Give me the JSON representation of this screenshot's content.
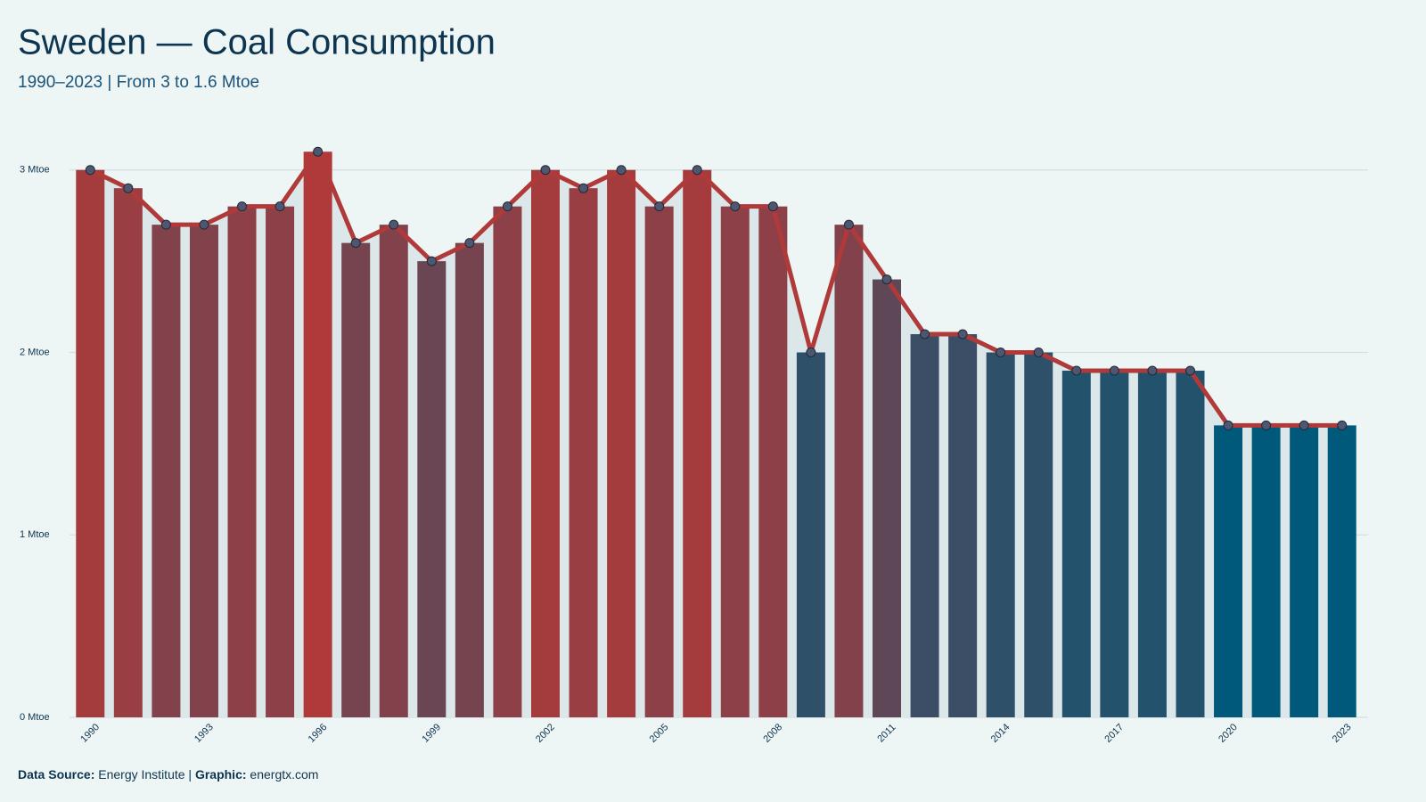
{
  "chart_data": {
    "type": "bar",
    "title": "Sweden — Coal Consumption",
    "subtitle": "1990–2023 | From 3 to 1.6 Mtoe",
    "categories": [
      "1990",
      null,
      null,
      "1993",
      null,
      null,
      "1996",
      null,
      null,
      "1999",
      null,
      null,
      "2002",
      null,
      null,
      "2005",
      null,
      null,
      "2008",
      null,
      null,
      "2011",
      null,
      null,
      "2014",
      null,
      null,
      "2017",
      null,
      null,
      "2020",
      null,
      null,
      "2023"
    ],
    "values": [
      3.0,
      2.9,
      2.7,
      2.7,
      2.8,
      2.8,
      3.1,
      2.6,
      2.7,
      2.5,
      2.6,
      2.8,
      3.0,
      2.9,
      3.0,
      2.8,
      3.0,
      2.8,
      2.8,
      2.0,
      2.7,
      2.4,
      2.1,
      2.1,
      2.0,
      2.0,
      1.9,
      1.9,
      1.9,
      1.9,
      1.6,
      1.6,
      1.6,
      1.6
    ],
    "color_scale": [
      "#00587a",
      "#b03a3a"
    ],
    "line_color": "#b03a3a",
    "marker_color": "#4f5670",
    "area_color": "#dce7e9",
    "ylim": [
      0,
      3.15
    ],
    "yticks": [
      {
        "value": 0,
        "label": "0 Mtoe"
      },
      {
        "value": 1,
        "label": "1 Mtoe"
      },
      {
        "value": 2,
        "label": "2 Mtoe"
      },
      {
        "value": 3,
        "label": "3 Mtoe"
      }
    ],
    "grid": true,
    "source_label": "Data Source:",
    "source": "Energy Institute",
    "separator": "|",
    "credit_label": "Graphic:",
    "credit": "energtx.com"
  }
}
